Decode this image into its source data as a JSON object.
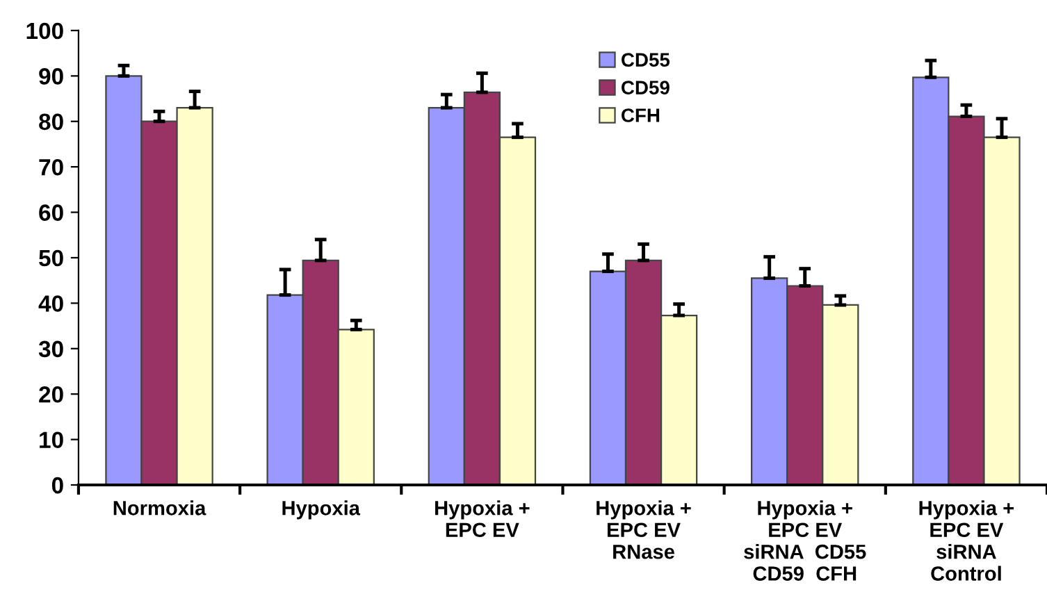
{
  "chart_data": {
    "type": "bar",
    "categories": [
      "Normoxia",
      "Hypoxia",
      "Hypoxia +\nEPC EV",
      "Hypoxia +\nEPC EV\nRNase",
      "Hypoxia +\nEPC EV\nsiRNA  CD55\nCD59  CFH",
      "Hypoxia +\nEPC EV\nsiRNA\nControl"
    ],
    "series": [
      {
        "name": "CD55",
        "color": "#9999ff",
        "values": [
          90,
          41.8,
          83,
          47,
          45.5,
          89.7
        ],
        "errors": [
          [
            90,
            92.3
          ],
          [
            41.8,
            47.4
          ],
          [
            83,
            85.9
          ],
          [
            47,
            50.8
          ],
          [
            45.5,
            50.2
          ],
          [
            89.7,
            93.4
          ]
        ]
      },
      {
        "name": "CD59",
        "color": "#993366",
        "values": [
          80,
          49.4,
          86.4,
          49.4,
          43.8,
          81.1
        ],
        "errors": [
          [
            80,
            82.2
          ],
          [
            49.4,
            54
          ],
          [
            86.4,
            90.6
          ],
          [
            49.4,
            53
          ],
          [
            43.8,
            47.6
          ],
          [
            81.1,
            83.6
          ]
        ]
      },
      {
        "name": "CFH",
        "color": "#ffffcc",
        "values": [
          83,
          34.2,
          76.5,
          37.3,
          39.6,
          76.5
        ],
        "errors": [
          [
            83,
            86.6
          ],
          [
            34.2,
            36.2
          ],
          [
            76.5,
            79.5
          ],
          [
            37.3,
            39.8
          ],
          [
            39.6,
            41.6
          ],
          [
            76.5,
            80.6
          ]
        ]
      }
    ],
    "ylim": [
      0,
      100
    ],
    "yticks": [
      0,
      10,
      20,
      30,
      40,
      50,
      60,
      70,
      80,
      90,
      100
    ],
    "grid": false,
    "legend": "top"
  }
}
